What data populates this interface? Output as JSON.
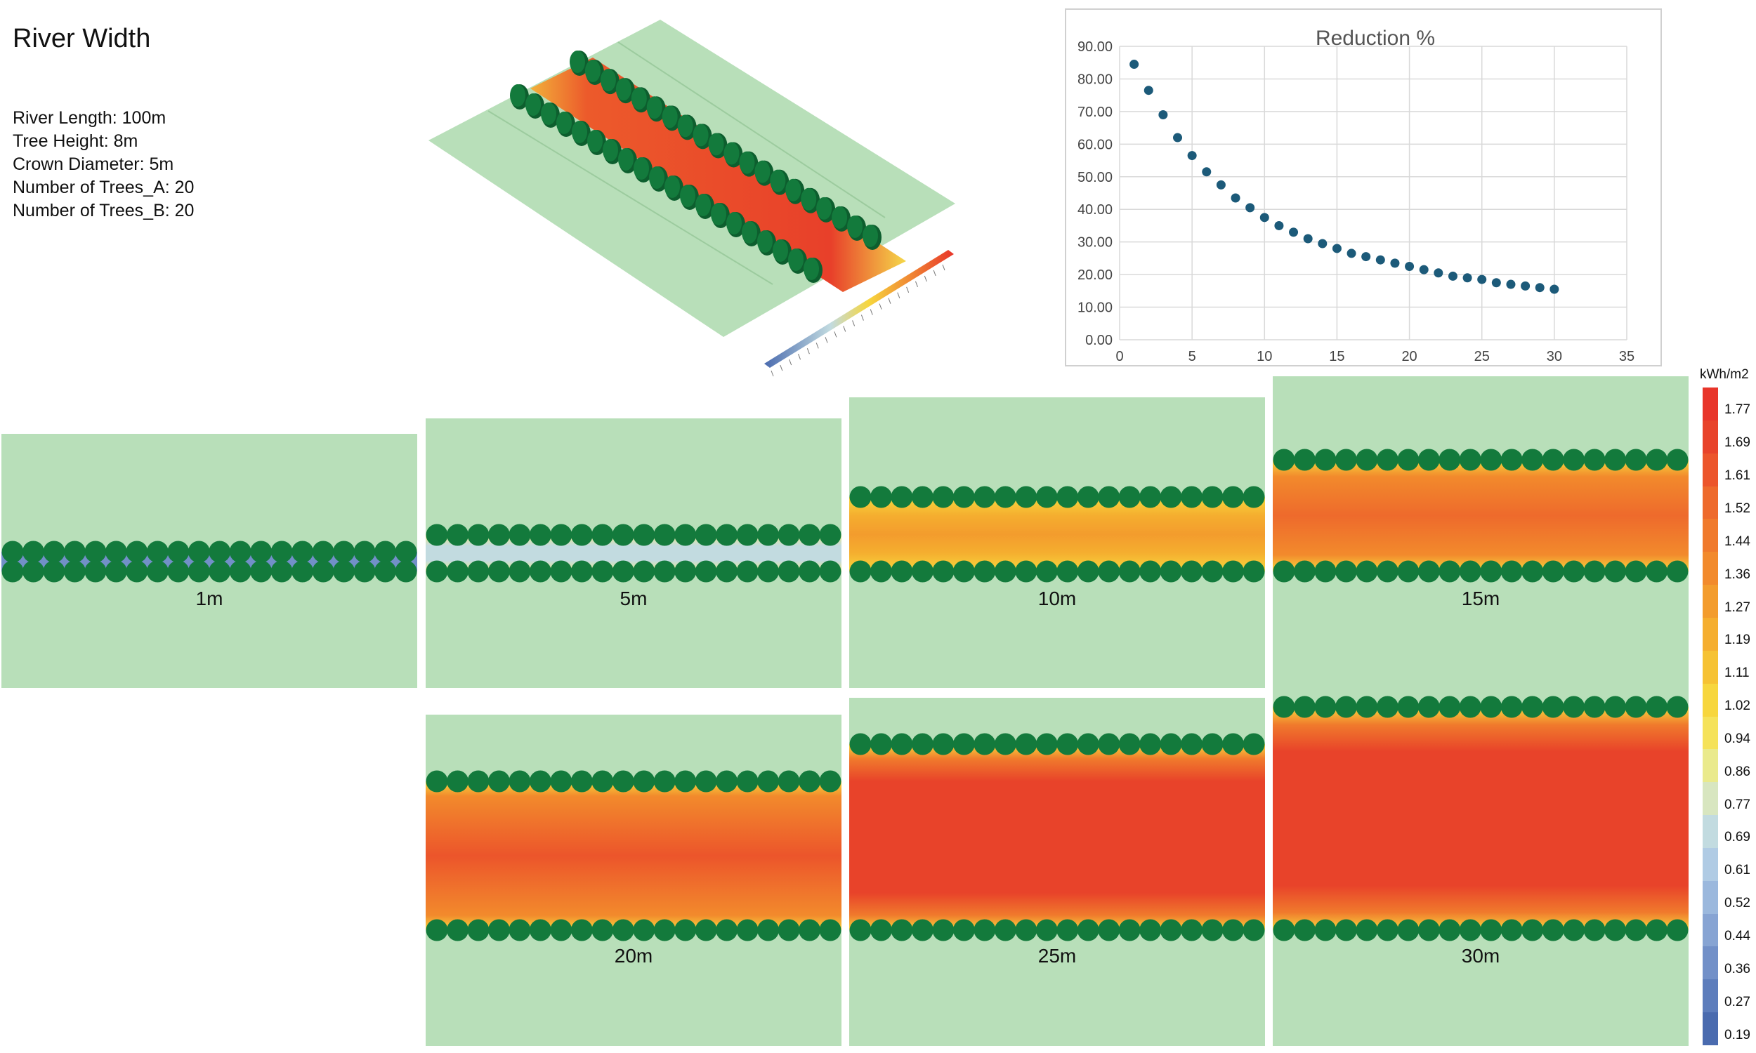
{
  "title": "River Width",
  "params": [
    "River Length: 100m",
    "Tree Height: 8m",
    "Crown Diameter: 5m",
    "Number of Trees_A: 20",
    "Number of Trees_B: 20"
  ],
  "colors": {
    "grass": "#b8dfb9",
    "tree": "#137a3c",
    "tree_dark": "#0d5e2e",
    "point": "#1c5a79",
    "grid": "#d9d9d9"
  },
  "legend": {
    "unit": "kWh/m2",
    "ticks": [
      "1.77",
      "1.69",
      "1.61",
      "1.52",
      "1.44",
      "1.36",
      "1.27",
      "1.19",
      "1.11",
      "1.02",
      "0.94",
      "0.86",
      "0.77",
      "0.69",
      "0.61",
      "0.52",
      "0.44",
      "0.36",
      "0.27",
      "0.19"
    ],
    "colors": [
      "#e8352a",
      "#e8432a",
      "#ec552b",
      "#ee6a2c",
      "#f07a2c",
      "#f28a2c",
      "#f39c2d",
      "#f5ae2f",
      "#f6c233",
      "#f7d63d",
      "#f5e25a",
      "#eaea8c",
      "#d8e6c0",
      "#c2dbe0",
      "#b0cbe4",
      "#9bb8dd",
      "#87a4d3",
      "#7290c8",
      "#5d7dbc",
      "#4a6baf"
    ]
  },
  "panels": [
    {
      "label": "1m",
      "width_m": 1
    },
    {
      "label": "5m",
      "width_m": 5
    },
    {
      "label": "10m",
      "width_m": 10
    },
    {
      "label": "15m",
      "width_m": 15
    },
    {
      "label": "20m",
      "width_m": 20
    },
    {
      "label": "25m",
      "width_m": 25
    },
    {
      "label": "30m",
      "width_m": 30
    }
  ],
  "chart_data": {
    "type": "scatter",
    "title": "Reduction %",
    "xlabel": "",
    "ylabel": "",
    "xlim": [
      0,
      35
    ],
    "ylim": [
      0,
      90
    ],
    "xticks": [
      "0",
      "5",
      "10",
      "15",
      "20",
      "25",
      "30",
      "35"
    ],
    "yticks": [
      "0.00",
      "10.00",
      "20.00",
      "30.00",
      "40.00",
      "50.00",
      "60.00",
      "70.00",
      "80.00",
      "90.00"
    ],
    "grid": true,
    "x": [
      1,
      2,
      3,
      4,
      5,
      6,
      7,
      8,
      9,
      10,
      11,
      12,
      13,
      14,
      15,
      16,
      17,
      18,
      19,
      20,
      21,
      22,
      23,
      24,
      25,
      26,
      27,
      28,
      29,
      30
    ],
    "y": [
      84.5,
      76.5,
      69.0,
      62.0,
      56.5,
      51.5,
      47.5,
      43.5,
      40.5,
      37.5,
      35.0,
      33.0,
      31.0,
      29.5,
      28.0,
      26.5,
      25.5,
      24.5,
      23.5,
      22.5,
      21.5,
      20.5,
      19.5,
      19.0,
      18.5,
      17.5,
      17.0,
      16.5,
      16.0,
      15.5
    ]
  }
}
